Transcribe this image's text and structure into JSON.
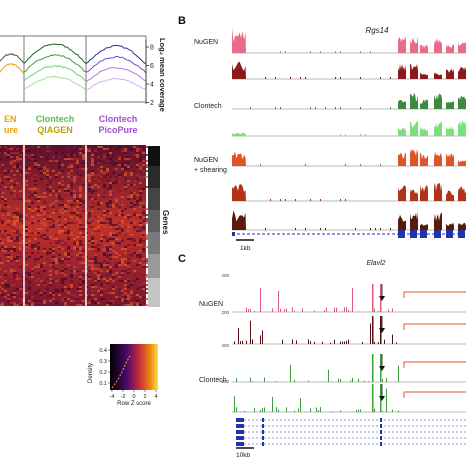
{
  "panel_labels": {
    "b": "B",
    "c": "C"
  },
  "panel_a": {
    "coverage_ylabel": "Log₂ mean coverage",
    "coverage_ticks": [
      "8",
      "6",
      "4",
      "2"
    ],
    "columns": [
      {
        "line1": "EN",
        "line2": "ure",
        "color1": "#e8a400",
        "color2": "#e8a400"
      },
      {
        "line1": "Clontech",
        "line2": "QIAGEN",
        "color1": "#4fc04f",
        "color2": "#b8a400"
      },
      {
        "line1": "Clontech",
        "line2": "PicoPure",
        "color1": "#a04fd0",
        "color2": "#a04fd0"
      }
    ],
    "genes_label": "Genes",
    "density_label": "Density",
    "density_ticks": [
      "0.4",
      "0.3",
      "0.2",
      "0.1"
    ],
    "rowz_label": "Row Z score",
    "rowz_ticks": [
      "-4",
      "-2",
      "0",
      "2",
      "4"
    ]
  },
  "panel_b": {
    "gene": "Rgs14",
    "groups": [
      "NuGEN",
      "Clontech",
      "NuGEN\n+ shearing"
    ],
    "scale": "1kb",
    "track_colors": [
      "#e86c8a",
      "#8b1a1a",
      "#3d8a3d",
      "#7be07b",
      "#e0542a",
      "#b0341a",
      "#5a1a0a"
    ]
  },
  "panel_c": {
    "gene": "Elavl2",
    "groups": [
      "NuGEN",
      "Clontech"
    ],
    "y_ticks": [
      "200",
      "200",
      "200",
      "200"
    ],
    "scale": "10kb",
    "bracket_color": "#e0542a"
  }
}
